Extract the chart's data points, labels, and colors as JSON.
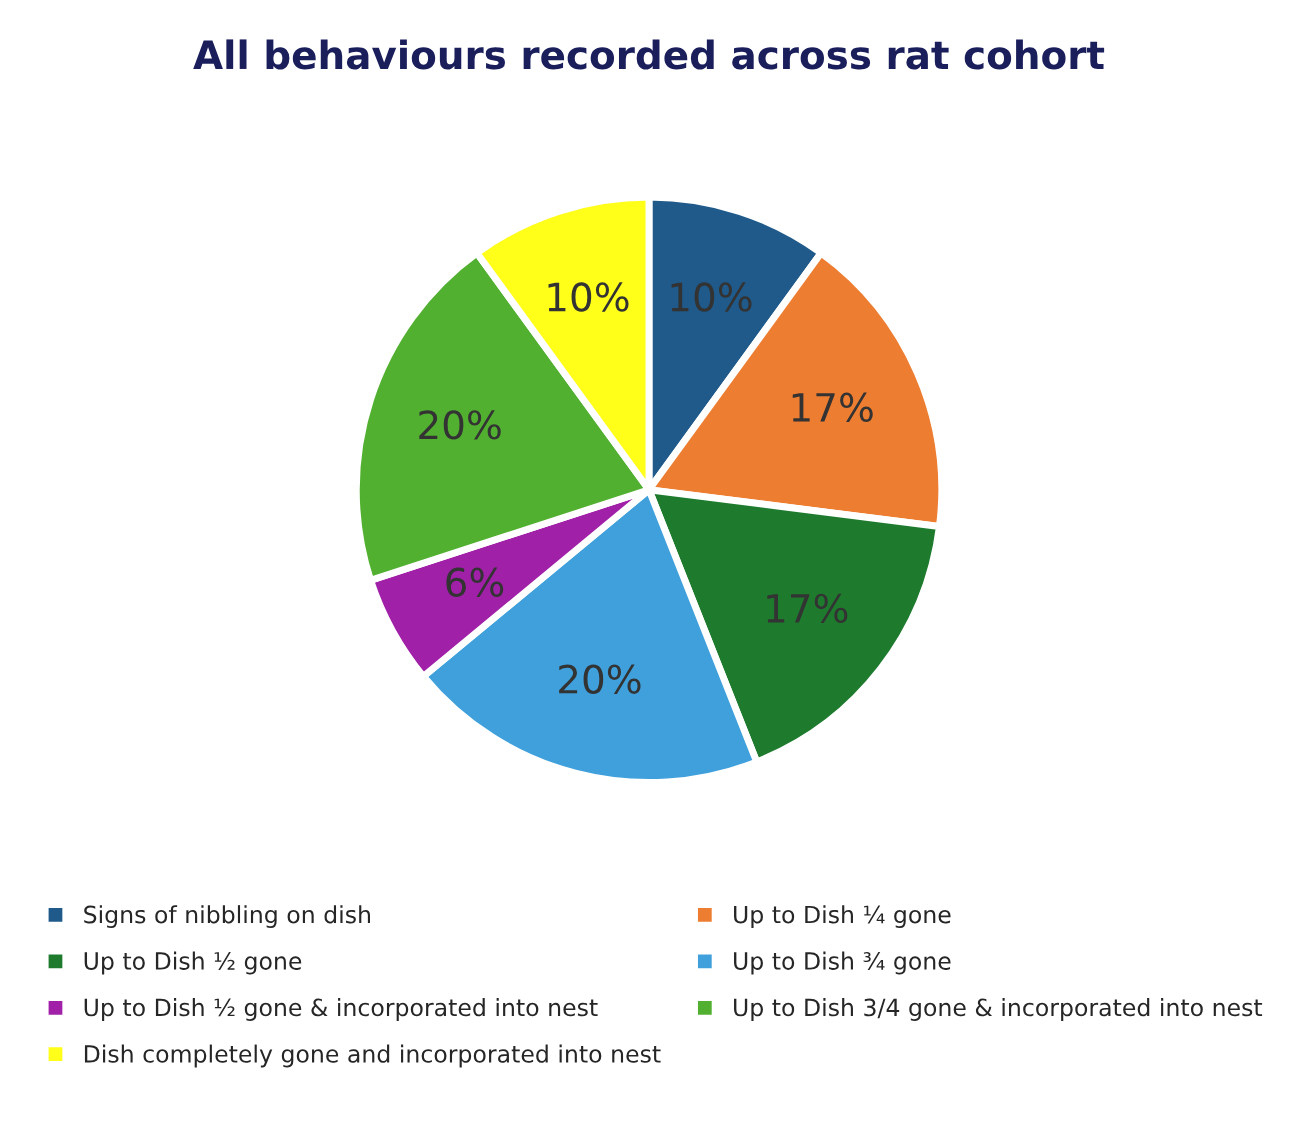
{
  "chart_data": {
    "type": "pie",
    "title": "All behaviours recorded across rat cohort",
    "categories": [
      "Signs of nibbling on dish",
      "Up to Dish ¼ gone",
      "Up to Dish ½ gone",
      "Up to Dish ¾ gone",
      "Up to Dish ½ gone & incorporated into nest",
      "Up to Dish 3/4 gone & incorporated into nest",
      "Dish completely gone and incorporated into nest"
    ],
    "values": [
      10,
      17,
      17,
      20,
      6,
      20,
      10
    ],
    "colors": [
      "#1f5a8a",
      "#ed7d31",
      "#1e7b2e",
      "#3fa0dc",
      "#a020a8",
      "#52b030",
      "#ffff1a"
    ],
    "value_labels": [
      "10%",
      "17%",
      "17%",
      "20%",
      "6%",
      "20%",
      "10%"
    ],
    "legend": "bottom"
  }
}
